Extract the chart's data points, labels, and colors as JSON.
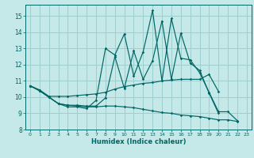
{
  "title": "",
  "xlabel": "Humidex (Indice chaleur)",
  "xlim": [
    -0.5,
    23.5
  ],
  "ylim": [
    8,
    15.7
  ],
  "yticks": [
    8,
    9,
    10,
    11,
    12,
    13,
    14,
    15
  ],
  "xticks": [
    0,
    1,
    2,
    3,
    4,
    5,
    6,
    7,
    8,
    9,
    10,
    11,
    12,
    13,
    14,
    15,
    16,
    17,
    18,
    19,
    20,
    21,
    22,
    23
  ],
  "bg_color": "#c5e8e8",
  "grid_color": "#9ecece",
  "line_color": "#006666",
  "lines": [
    {
      "x": [
        0,
        1,
        2,
        3,
        4,
        5,
        6,
        7,
        8,
        9,
        10,
        11,
        12,
        13,
        14,
        15,
        16,
        17,
        18,
        19,
        20,
        21,
        22
      ],
      "y": [
        10.7,
        10.4,
        10.0,
        9.6,
        9.4,
        9.4,
        9.3,
        9.8,
        13.0,
        12.6,
        13.9,
        11.3,
        12.8,
        15.35,
        11.0,
        14.85,
        12.4,
        12.3,
        11.5,
        10.3,
        9.1,
        9.1,
        8.55
      ]
    },
    {
      "x": [
        0,
        1,
        2,
        3,
        4,
        5,
        6,
        7,
        8,
        9,
        10,
        11,
        12,
        13,
        14,
        15,
        16,
        17,
        18,
        19,
        20,
        21,
        22
      ],
      "y": [
        10.7,
        10.45,
        10.05,
        10.05,
        10.05,
        10.1,
        10.15,
        10.2,
        10.3,
        10.5,
        10.65,
        10.75,
        10.85,
        10.9,
        11.0,
        11.05,
        11.1,
        11.1,
        11.1,
        11.4,
        10.35,
        null,
        null
      ]
    },
    {
      "x": [
        0,
        1,
        2,
        3,
        4,
        5,
        6,
        7,
        8,
        9,
        10,
        11,
        12,
        13,
        14,
        15,
        16,
        17,
        18,
        19,
        20
      ],
      "y": [
        10.7,
        10.4,
        10.0,
        9.6,
        9.5,
        9.5,
        9.45,
        9.45,
        9.95,
        12.5,
        10.55,
        12.85,
        11.1,
        12.25,
        14.7,
        11.1,
        13.95,
        12.1,
        11.65,
        10.25,
        9.0
      ]
    },
    {
      "x": [
        0,
        1,
        2,
        3,
        4,
        5,
        6,
        7,
        8,
        9,
        10,
        11,
        12,
        13,
        14,
        15,
        16,
        17,
        18,
        19,
        20,
        21,
        22
      ],
      "y": [
        10.7,
        10.4,
        10.0,
        9.6,
        9.5,
        9.45,
        9.4,
        9.4,
        9.45,
        9.45,
        9.4,
        9.35,
        9.25,
        9.15,
        9.05,
        9.0,
        8.9,
        8.85,
        8.8,
        8.7,
        8.6,
        8.6,
        8.5
      ]
    }
  ]
}
